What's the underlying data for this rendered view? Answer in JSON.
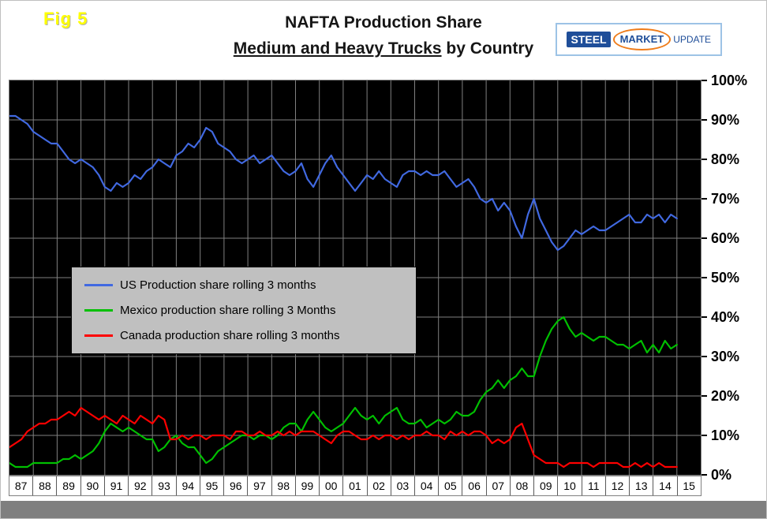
{
  "header": {
    "fig_label": "Fig 5",
    "title_line1": "NAFTA Production Share",
    "title_line2_underlined": "Medium and Heavy Trucks",
    "title_line2_rest": " by Country"
  },
  "logo": {
    "word1": "STEEL",
    "word2": "MARKET",
    "word3": "UPDATE"
  },
  "chart_data": {
    "type": "line",
    "title": "NAFTA Production Share - Medium and Heavy Trucks by Country",
    "xlabel": "",
    "ylabel": "",
    "x_unit": "year",
    "x_start": 1987,
    "x_step": 0.25,
    "xlim": [
      1987,
      2016
    ],
    "ylim": [
      0,
      100
    ],
    "grid": true,
    "grid_color": "#808080",
    "plot_bg": "#000000",
    "legend_position": "middle-left",
    "yticks": [
      "100%",
      "90%",
      "80%",
      "70%",
      "60%",
      "50%",
      "40%",
      "30%",
      "20%",
      "10%",
      "0%"
    ],
    "xticklabels": [
      "87",
      "88",
      "89",
      "90",
      "91",
      "92",
      "93",
      "94",
      "95",
      "96",
      "97",
      "98",
      "99",
      "00",
      "01",
      "02",
      "03",
      "04",
      "05",
      "06",
      "07",
      "08",
      "09",
      "10",
      "11",
      "12",
      "13",
      "14",
      "15"
    ],
    "series": [
      {
        "name": "US Production share rolling 3 months",
        "color": "#4169e1",
        "values": [
          91,
          91,
          90,
          89,
          87,
          86,
          85,
          84,
          84,
          82,
          80,
          79,
          80,
          79,
          78,
          76,
          73,
          72,
          74,
          73,
          74,
          76,
          75,
          77,
          78,
          80,
          79,
          78,
          81,
          82,
          84,
          83,
          85,
          88,
          87,
          84,
          83,
          82,
          80,
          79,
          80,
          81,
          79,
          80,
          81,
          79,
          77,
          76,
          77,
          79,
          75,
          73,
          76,
          79,
          81,
          78,
          76,
          74,
          72,
          74,
          76,
          75,
          77,
          75,
          74,
          73,
          76,
          77,
          77,
          76,
          77,
          76,
          76,
          77,
          75,
          73,
          74,
          75,
          73,
          70,
          69,
          70,
          67,
          69,
          67,
          63,
          60,
          66,
          70,
          65,
          62,
          59,
          57,
          58,
          60,
          62,
          61,
          62,
          63,
          62,
          62,
          63,
          64,
          65,
          66,
          64,
          64,
          66,
          65,
          66,
          64,
          66,
          65
        ]
      },
      {
        "name": "Mexico production share rolling 3 Months",
        "color": "#00c000",
        "values": [
          3,
          2,
          2,
          2,
          3,
          3,
          3,
          3,
          3,
          4,
          4,
          5,
          4,
          5,
          6,
          8,
          11,
          13,
          12,
          11,
          12,
          11,
          10,
          9,
          9,
          6,
          7,
          9,
          10,
          8,
          7,
          7,
          5,
          3,
          4,
          6,
          7,
          8,
          9,
          10,
          10,
          9,
          10,
          10,
          9,
          10,
          12,
          13,
          13,
          11,
          14,
          16,
          14,
          12,
          11,
          12,
          13,
          15,
          17,
          15,
          14,
          15,
          13,
          15,
          16,
          17,
          14,
          13,
          13,
          14,
          12,
          13,
          14,
          13,
          14,
          16,
          15,
          15,
          16,
          19,
          21,
          22,
          24,
          22,
          24,
          25,
          27,
          25,
          25,
          30,
          34,
          37,
          39,
          40,
          37,
          35,
          36,
          35,
          34,
          35,
          35,
          34,
          33,
          33,
          32,
          33,
          34,
          31,
          33,
          31,
          34,
          32,
          33
        ]
      },
      {
        "name": "Canada production share rolling 3 months",
        "color": "#ff0000",
        "values": [
          7,
          8,
          9,
          11,
          12,
          13,
          13,
          14,
          14,
          15,
          16,
          15,
          17,
          16,
          15,
          14,
          15,
          14,
          13,
          15,
          14,
          13,
          15,
          14,
          13,
          15,
          14,
          9,
          9,
          10,
          9,
          10,
          10,
          9,
          10,
          10,
          10,
          9,
          11,
          11,
          10,
          10,
          11,
          10,
          10,
          11,
          10,
          11,
          10,
          11,
          11,
          11,
          10,
          9,
          8,
          10,
          11,
          11,
          10,
          9,
          9,
          10,
          9,
          10,
          10,
          9,
          10,
          9,
          10,
          10,
          11,
          10,
          10,
          9,
          11,
          10,
          11,
          10,
          11,
          11,
          10,
          8,
          9,
          8,
          9,
          12,
          13,
          9,
          5,
          4,
          3,
          3,
          3,
          2,
          3,
          3,
          3,
          3,
          2,
          3,
          3,
          3,
          3,
          2,
          2,
          3,
          2,
          3,
          2,
          3,
          2,
          2,
          2
        ]
      }
    ]
  }
}
